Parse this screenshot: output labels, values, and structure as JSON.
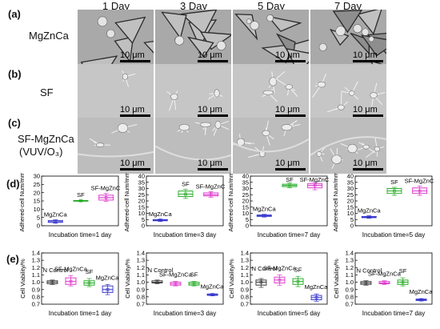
{
  "figure": {
    "panel_labels": [
      "(a)",
      "(b)",
      "(c)",
      "(d)",
      "(e)"
    ],
    "day_labels": [
      "1 Day",
      "3 Day",
      "5 Day",
      "7 Day"
    ],
    "row_labels": {
      "a": "MgZnCa",
      "b": "SF",
      "c_line1": "SF-MgZnCa",
      "c_line2": "(VUV/O₃)"
    },
    "scale_label": "10 μm"
  },
  "chart_data": [
    {
      "type": "box",
      "title": "",
      "xlabel": "Incubation time=1 day",
      "ylabel": "Adhered-cell Num/mm²",
      "ylim": [
        0,
        30
      ],
      "yticks": [
        0,
        5,
        10,
        15,
        20,
        25,
        30
      ],
      "groups": [
        {
          "name": "MgZnCa",
          "color": "#3333cc",
          "q1": 2.0,
          "median": 2.5,
          "q3": 3.2,
          "min": 1.5,
          "max": 3.6,
          "mean": 2.5
        },
        {
          "name": "SF",
          "color": "#22aa22",
          "q1": 14.9,
          "median": 15.1,
          "q3": 15.3,
          "min": 14.7,
          "max": 15.4,
          "mean": 15.1
        },
        {
          "name": "SF-MgZnCa",
          "color": "#dd33cc",
          "q1": 15.5,
          "median": 17.0,
          "q3": 18.5,
          "min": 14.8,
          "max": 19.5,
          "mean": 17.0
        }
      ]
    },
    {
      "type": "box",
      "title": "",
      "xlabel": "Incubation time=3 day",
      "ylabel": "Adhered-cell Num/mm²",
      "ylim": [
        0,
        40
      ],
      "yticks": [
        0,
        5,
        10,
        15,
        20,
        25,
        30,
        35,
        40
      ],
      "groups": [
        {
          "name": "MgZnCa",
          "color": "#3333cc",
          "q1": 4.0,
          "median": 4.5,
          "q3": 5.0,
          "min": 3.5,
          "max": 5.3,
          "mean": 4.5
        },
        {
          "name": "SF",
          "color": "#22aa22",
          "q1": 23.5,
          "median": 25.5,
          "q3": 28.0,
          "min": 22.0,
          "max": 29.5,
          "mean": 25.5
        },
        {
          "name": "SF-MgZnCa",
          "color": "#dd33cc",
          "q1": 24.0,
          "median": 25.0,
          "q3": 26.5,
          "min": 23.0,
          "max": 27.5,
          "mean": 25.0
        }
      ]
    },
    {
      "type": "box",
      "title": "",
      "xlabel": "Incubation time=7 day",
      "ylabel": "Adhered-cell Num/mm²",
      "ylim": [
        0,
        40
      ],
      "yticks": [
        0,
        5,
        10,
        15,
        20,
        25,
        30,
        35,
        40
      ],
      "groups": [
        {
          "name": "MgZnCa",
          "color": "#3333cc",
          "q1": 7.5,
          "median": 8.0,
          "q3": 8.7,
          "min": 7.0,
          "max": 9.2,
          "mean": 8.0
        },
        {
          "name": "SF",
          "color": "#22aa22",
          "q1": 31.5,
          "median": 32.5,
          "q3": 33.5,
          "min": 30.5,
          "max": 34.5,
          "mean": 32.5
        },
        {
          "name": "SF-MgZnCa",
          "color": "#dd33cc",
          "q1": 30.5,
          "median": 32.5,
          "q3": 34.0,
          "min": 29.0,
          "max": 35.0,
          "mean": 32.5
        }
      ]
    },
    {
      "type": "box",
      "title": "",
      "xlabel": "Incubation time=5 day",
      "ylabel": "Adhered-cell Num/mm²",
      "ylim": [
        0,
        40
      ],
      "yticks": [
        0,
        5,
        10,
        15,
        20,
        25,
        30,
        35,
        40
      ],
      "groups": [
        {
          "name": "MgZnCa",
          "color": "#3333cc",
          "q1": 6.5,
          "median": 7.0,
          "q3": 7.5,
          "min": 6.0,
          "max": 8.0,
          "mean": 7.0
        },
        {
          "name": "SF",
          "color": "#22aa22",
          "q1": 26.0,
          "median": 28.0,
          "q3": 30.0,
          "min": 24.5,
          "max": 31.0,
          "mean": 28.0
        },
        {
          "name": "SF-MgZnCa",
          "color": "#dd33cc",
          "q1": 26.0,
          "median": 28.0,
          "q3": 30.5,
          "min": 24.5,
          "max": 32.0,
          "mean": 28.0
        }
      ]
    },
    {
      "type": "box",
      "title": "",
      "xlabel": "Incubation time=1 day",
      "ylabel": "Cell Viability/%",
      "ylim": [
        0.7,
        1.4
      ],
      "yticks": [
        0.7,
        0.8,
        0.9,
        1.0,
        1.1,
        1.2,
        1.3,
        1.4
      ],
      "groups": [
        {
          "name": "N Control",
          "color": "#333333",
          "q1": 0.98,
          "median": 1.0,
          "q3": 1.02,
          "min": 0.97,
          "max": 1.03,
          "mean": 1.0
        },
        {
          "name": "SF-MgZnCa",
          "color": "#dd33cc",
          "q1": 0.97,
          "median": 1.01,
          "q3": 1.06,
          "min": 0.95,
          "max": 1.09,
          "mean": 1.01
        },
        {
          "name": "SF",
          "color": "#22aa22",
          "q1": 0.96,
          "median": 0.99,
          "q3": 1.02,
          "min": 0.94,
          "max": 1.05,
          "mean": 0.99
        },
        {
          "name": "MgZnCa",
          "color": "#3333cc",
          "q1": 0.86,
          "median": 0.9,
          "q3": 0.95,
          "min": 0.83,
          "max": 0.97,
          "mean": 0.9
        }
      ]
    },
    {
      "type": "box",
      "title": "",
      "xlabel": "Incubation time=3 day",
      "ylabel": "Cell Viability/%",
      "ylim": [
        0.7,
        1.4
      ],
      "yticks": [
        0.7,
        0.8,
        0.9,
        1.0,
        1.1,
        1.2,
        1.3,
        1.4
      ],
      "groups": [
        {
          "name": "N Control",
          "color": "#333333",
          "q1": 0.99,
          "median": 1.0,
          "q3": 1.02,
          "min": 0.98,
          "max": 1.03,
          "mean": 1.0
        },
        {
          "name": "SF-MgZnCa",
          "color": "#dd33cc",
          "q1": 0.96,
          "median": 0.98,
          "q3": 1.0,
          "min": 0.95,
          "max": 1.01,
          "mean": 0.98
        },
        {
          "name": "SF",
          "color": "#22aa22",
          "q1": 0.96,
          "median": 0.98,
          "q3": 1.0,
          "min": 0.95,
          "max": 1.01,
          "mean": 0.98
        },
        {
          "name": "MgZnCa",
          "color": "#3333cc",
          "q1": 0.82,
          "median": 0.83,
          "q3": 0.84,
          "min": 0.815,
          "max": 0.845,
          "mean": 0.83
        }
      ]
    },
    {
      "type": "box",
      "title": "",
      "xlabel": "Incubation time=5 day",
      "ylabel": "Cell Viability/%",
      "ylim": [
        0.7,
        1.4
      ],
      "yticks": [
        0.7,
        0.8,
        0.9,
        1.0,
        1.1,
        1.2,
        1.3,
        1.4
      ],
      "groups": [
        {
          "name": "N Control",
          "color": "#333333",
          "q1": 0.96,
          "median": 1.0,
          "q3": 1.03,
          "min": 0.93,
          "max": 1.05,
          "mean": 1.0
        },
        {
          "name": "SF-MgZnCa",
          "color": "#dd33cc",
          "q1": 0.99,
          "median": 1.03,
          "q3": 1.07,
          "min": 0.96,
          "max": 1.1,
          "mean": 1.03
        },
        {
          "name": "SF",
          "color": "#22aa22",
          "q1": 0.97,
          "median": 1.01,
          "q3": 1.05,
          "min": 0.94,
          "max": 1.08,
          "mean": 1.01
        },
        {
          "name": "MgZnCa",
          "color": "#3333cc",
          "q1": 0.76,
          "median": 0.79,
          "q3": 0.82,
          "min": 0.74,
          "max": 0.84,
          "mean": 0.79
        }
      ]
    },
    {
      "type": "box",
      "title": "",
      "xlabel": "Incubation time=7 day",
      "ylabel": "Cell Viability/%",
      "ylim": [
        0.7,
        1.4
      ],
      "yticks": [
        0.7,
        0.8,
        0.9,
        1.0,
        1.1,
        1.2,
        1.3,
        1.4
      ],
      "groups": [
        {
          "name": "N Control",
          "color": "#333333",
          "q1": 0.97,
          "median": 0.99,
          "q3": 1.01,
          "min": 0.96,
          "max": 1.02,
          "mean": 0.99
        },
        {
          "name": "SF-MgZnCa",
          "color": "#dd33cc",
          "q1": 0.98,
          "median": 0.99,
          "q3": 1.01,
          "min": 0.97,
          "max": 1.02,
          "mean": 0.99
        },
        {
          "name": "SF",
          "color": "#22aa22",
          "q1": 0.97,
          "median": 1.0,
          "q3": 1.03,
          "min": 0.95,
          "max": 1.06,
          "mean": 1.0
        },
        {
          "name": "MgZnCa",
          "color": "#3333cc",
          "q1": 0.75,
          "median": 0.76,
          "q3": 0.77,
          "min": 0.745,
          "max": 0.775,
          "mean": 0.76
        }
      ]
    }
  ]
}
